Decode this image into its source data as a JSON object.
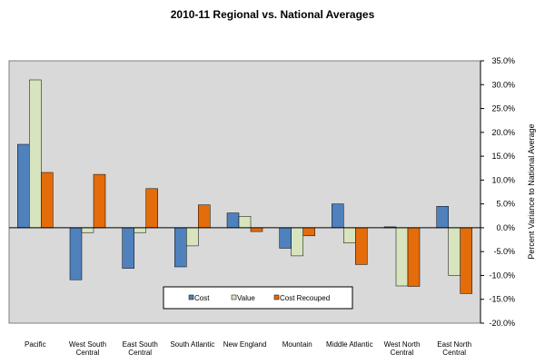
{
  "chart_data": {
    "type": "bar",
    "title": "2010-11 Regional vs. National Averages",
    "xlabel": "",
    "ylabel": "Percent Variance to National Average",
    "ylim": [
      -20,
      35
    ],
    "ytick_step": 5,
    "y_axis_side": "right",
    "grid": false,
    "legend_position": "bottom-center",
    "categories": [
      [
        "Pacific"
      ],
      [
        "West South",
        "Central"
      ],
      [
        "East South",
        "Central"
      ],
      [
        "South Atlantic"
      ],
      [
        "New England"
      ],
      [
        "Mountain"
      ],
      [
        "Middle Atlantic"
      ],
      [
        "West North",
        "Central"
      ],
      [
        "East North",
        "Central"
      ]
    ],
    "series": [
      {
        "name": "Cost",
        "color": "#4f81bd",
        "values": [
          17.5,
          -10.9,
          -8.5,
          -8.2,
          3.1,
          -4.3,
          5.0,
          0.2,
          4.5
        ]
      },
      {
        "name": "Value",
        "color": "#d7e4bd",
        "values": [
          31.0,
          -1.0,
          -1.0,
          -3.8,
          2.4,
          -5.9,
          -3.2,
          -12.2,
          -10.0
        ]
      },
      {
        "name": "Cost Recouped",
        "color": "#e46c0a",
        "values": [
          11.6,
          11.2,
          8.2,
          4.8,
          -0.8,
          -1.7,
          -7.7,
          -12.3,
          -13.8
        ]
      }
    ]
  }
}
